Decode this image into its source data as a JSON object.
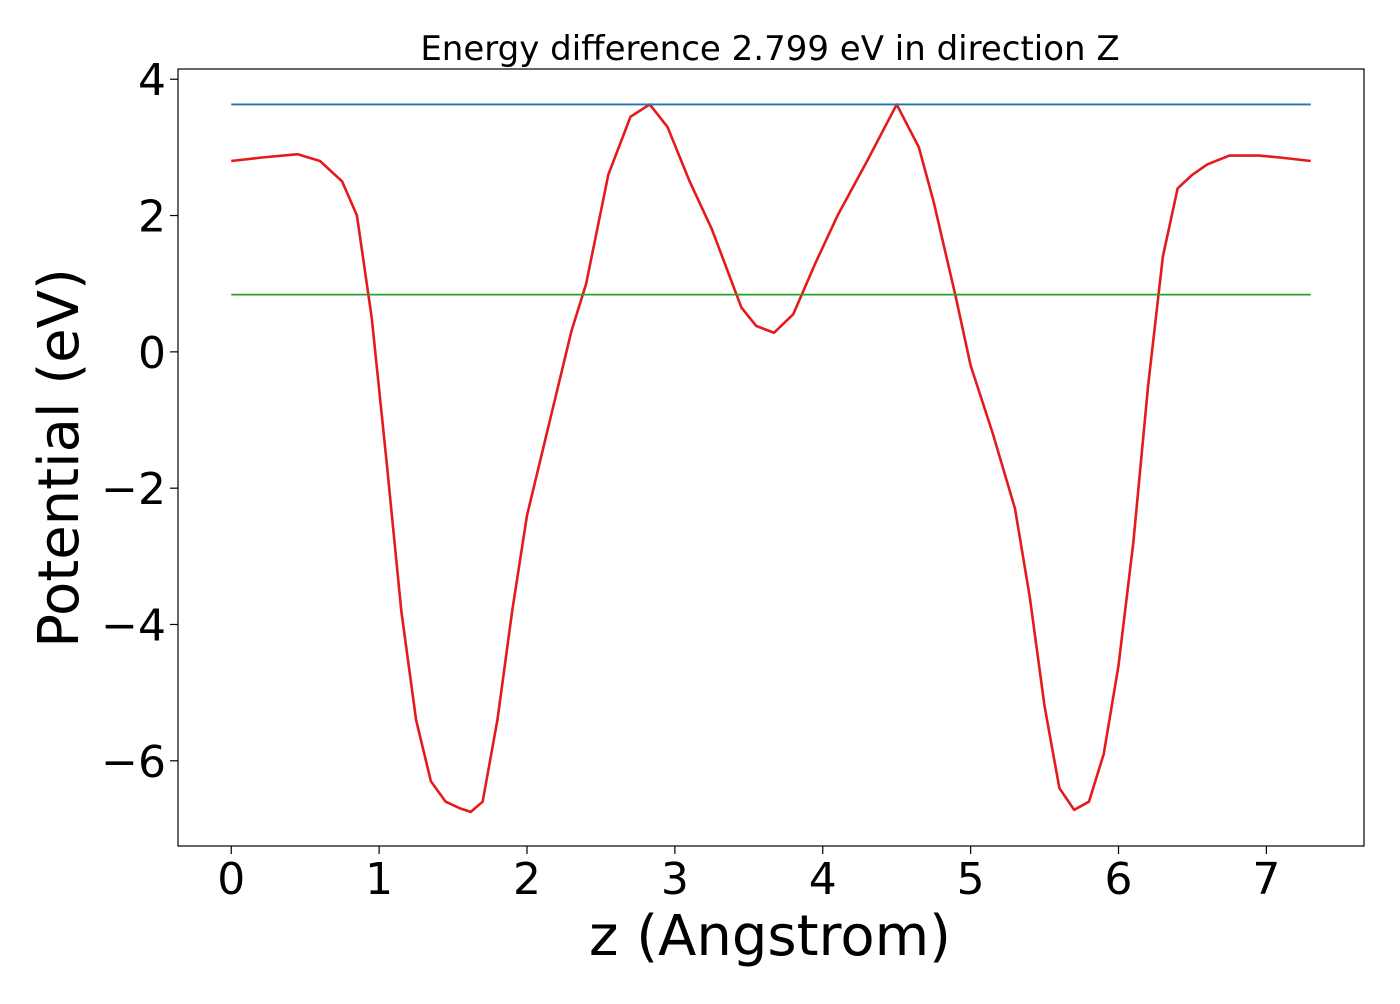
{
  "chart_data": {
    "type": "line",
    "title": "Energy difference 2.799 eV in direction Z",
    "xlabel": "z (Angstrom)",
    "ylabel": "Potential (eV)",
    "xlim": [
      -0.36,
      7.66
    ],
    "ylim": [
      -7.25,
      4.15
    ],
    "x_ticks": [
      0,
      1,
      2,
      3,
      4,
      5,
      6,
      7
    ],
    "x_tick_labels": [
      "0",
      "1",
      "2",
      "3",
      "4",
      "5",
      "6",
      "7"
    ],
    "y_ticks": [
      -6,
      -4,
      -2,
      0,
      2,
      4
    ],
    "y_tick_labels": [
      "−6",
      "−4",
      "−2",
      "0",
      "2",
      "4"
    ],
    "grid": false,
    "series": [
      {
        "color": "#e41a1c",
        "x": [
          0.0,
          0.2,
          0.45,
          0.6,
          0.75,
          0.85,
          0.95,
          1.05,
          1.15,
          1.25,
          1.35,
          1.45,
          1.55,
          1.62,
          1.7,
          1.8,
          1.9,
          2.0,
          2.1,
          2.2,
          2.3,
          2.4,
          2.55,
          2.7,
          2.83,
          2.95,
          3.1,
          3.25,
          3.45,
          3.55,
          3.67,
          3.8,
          3.95,
          4.1,
          4.3,
          4.5,
          4.65,
          4.75,
          4.9,
          5.0,
          5.15,
          5.3,
          5.4,
          5.5,
          5.6,
          5.7,
          5.8,
          5.9,
          6.0,
          6.1,
          6.2,
          6.3,
          6.4,
          6.5,
          6.6,
          6.75,
          6.95,
          7.1,
          7.3
        ],
        "y": [
          2.8,
          2.85,
          2.9,
          2.8,
          2.5,
          2.0,
          0.5,
          -1.6,
          -3.8,
          -5.4,
          -6.3,
          -6.6,
          -6.7,
          -6.75,
          -6.6,
          -5.4,
          -3.8,
          -2.4,
          -1.5,
          -0.6,
          0.3,
          1.0,
          2.6,
          3.45,
          3.63,
          3.3,
          2.5,
          1.8,
          0.65,
          0.38,
          0.28,
          0.55,
          1.3,
          2.0,
          2.8,
          3.63,
          3.0,
          2.2,
          0.8,
          -0.2,
          -1.2,
          -2.3,
          -3.6,
          -5.2,
          -6.4,
          -6.72,
          -6.6,
          -5.9,
          -4.6,
          -2.8,
          -0.5,
          1.4,
          2.4,
          2.6,
          2.75,
          2.88,
          2.88,
          2.85,
          2.8
        ]
      },
      {
        "color": "#1f77b4",
        "x": [
          0.0,
          7.3
        ],
        "y": [
          3.63,
          3.63
        ]
      },
      {
        "color": "#2ca02c",
        "x": [
          0.0,
          7.3
        ],
        "y": [
          0.84,
          0.84
        ]
      }
    ]
  }
}
